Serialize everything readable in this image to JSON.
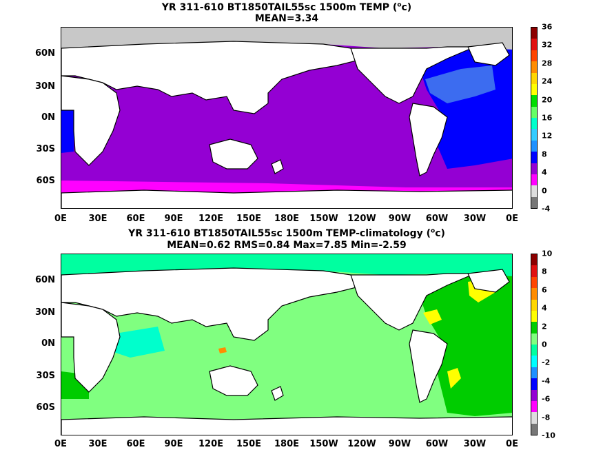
{
  "top": {
    "title_line1_pre": "YR 311-610 BT1850TAIL55sc 1500m TEMP (",
    "title_line1_unit_sup": "o",
    "title_line1_post": "c)",
    "title_line2": "MEAN=3.34",
    "colorbar_labels": [
      "36",
      "32",
      "28",
      "24",
      "20",
      "16",
      "12",
      "8",
      "4",
      "0",
      "-4"
    ],
    "colorbar_colors": [
      "#8b0000",
      "#e01010",
      "#ff4500",
      "#ff8c00",
      "#ffd700",
      "#ffff00",
      "#00dd00",
      "#66ff66",
      "#00ffcc",
      "#33ccff",
      "#1e90ff",
      "#0000ff",
      "#9400d3",
      "#ff00ff",
      "#dddddd",
      "#777777"
    ]
  },
  "bottom": {
    "title_line1_pre": "YR 311-610 BT1850TAIL55sc 1500m TEMP-climatology (",
    "title_line1_unit_sup": "o",
    "title_line1_post": "c)",
    "title_line2": "MEAN=0.62   RMS=0.84   Max=7.85   Min=-2.59",
    "colorbar_labels": [
      "10",
      "8",
      "6",
      "4",
      "2",
      "0",
      "-2",
      "-4",
      "-6",
      "-8",
      "-10"
    ],
    "colorbar_colors": [
      "#8b0000",
      "#e01010",
      "#ff4500",
      "#ff8c00",
      "#ffd700",
      "#ffff00",
      "#00cc00",
      "#80ff80",
      "#00ffa0",
      "#00ffff",
      "#1e90ff",
      "#0000ff",
      "#9400d3",
      "#ff00ff",
      "#dddddd",
      "#777777"
    ]
  },
  "lat_labels": [
    "60N",
    "30N",
    "0N",
    "30S",
    "60S"
  ],
  "lon_labels": [
    "0E",
    "30E",
    "60E",
    "90E",
    "120E",
    "150E",
    "180E",
    "150W",
    "120W",
    "90W",
    "60W",
    "30W",
    "0E"
  ],
  "fill_colors": {
    "top_pacific_indian": "#9400d3",
    "top_southern": "#ff00ff",
    "top_atlantic": "#0000ff",
    "top_atlantic_north": "#3c6cf0",
    "top_arctic": "#c8c8c8",
    "bottom_main": "#80ff80",
    "bottom_atlantic": "#00cc00",
    "bottom_arctic": "#00ffa0",
    "bottom_indian": "#00ffcc",
    "bottom_yellow": "#ffff00",
    "bottom_orange": "#ff8c00",
    "land": "#ffffff"
  }
}
